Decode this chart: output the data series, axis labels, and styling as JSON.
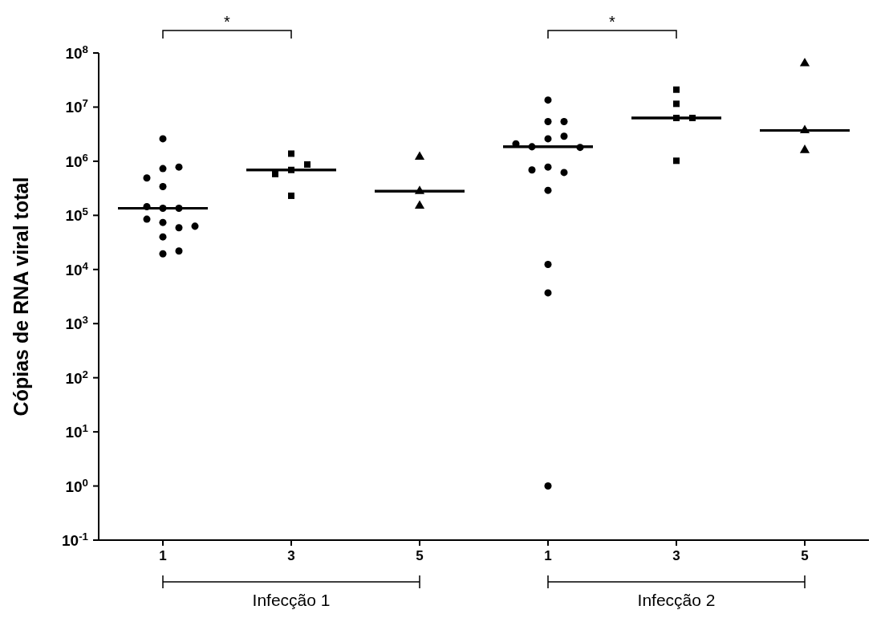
{
  "chart_data": [
    {
      "type": "scatter",
      "xlabel": "Infecção 1",
      "ylabel": "Cópias de RNA viral total",
      "log": "y",
      "categories": [
        "1",
        "3",
        "5"
      ],
      "ylim": [
        0.1,
        100000000
      ],
      "yticks": [
        {
          "value": 0.1,
          "label": "10$^{-1}$"
        },
        {
          "value": 1,
          "label": "10$^{0}$"
        },
        {
          "value": 10,
          "label": "10$^{1}$"
        },
        {
          "value": 100,
          "label": "10$^{2}$"
        },
        {
          "value": 1000,
          "label": "10$^{3}$"
        },
        {
          "value": 10000,
          "label": "10$^{4}$"
        },
        {
          "value": 100000,
          "label": "10$^{5}$"
        },
        {
          "value": 1000000,
          "label": "10$^{6}$"
        },
        {
          "value": 10000000,
          "label": "10$^{7}$"
        },
        {
          "value": 100000000,
          "label": "10$^{8}$"
        }
      ],
      "series": [
        {
          "type": "scatter",
          "marker": "circle",
          "color": "#000000",
          "x": [
            "1",
            "1",
            "1",
            "1",
            "1",
            "1",
            "1",
            "1",
            "1",
            "1",
            "1",
            "1",
            "1",
            "1",
            "1"
          ],
          "values": [
            2600000,
            730000,
            780000,
            490000,
            340000,
            135000,
            135000,
            145000,
            74000,
            85000,
            59000,
            63000,
            40000,
            19500,
            22000
          ]
        },
        {
          "type": "scatter",
          "marker": "square",
          "color": "#000000",
          "x": [
            "3",
            "3",
            "3",
            "3",
            "3"
          ],
          "values": [
            1380000,
            870000,
            690000,
            580000,
            230000
          ]
        },
        {
          "type": "scatter",
          "marker": "triangle",
          "color": "#000000",
          "x": [
            "5",
            "5",
            "5"
          ],
          "values": [
            1200000,
            280000,
            150000
          ]
        },
        {
          "type": "box",
          "color": "#000000",
          "boxes": [
            {
              "low": 135000,
              "q1": 135000,
              "median": 135000,
              "q3": 135000,
              "high": 135000
            },
            {
              "low": 690000,
              "q1": 690000,
              "median": 690000,
              "q3": 690000,
              "high": 690000
            },
            {
              "low": 280000,
              "q1": 280000,
              "median": 280000,
              "q3": 280000,
              "high": 280000
            }
          ]
        }
      ],
      "annotations": [
        "*"
      ]
    },
    {
      "type": "scatter",
      "xlabel": "Infecção 2",
      "log": "y",
      "tick_labels": "x",
      "categories": [
        "1",
        "3",
        "5"
      ],
      "ylim": [
        0.1,
        100000000
      ],
      "series": [
        {
          "type": "scatter",
          "marker": "circle",
          "color": "#000000",
          "x": [
            "1",
            "1",
            "1",
            "1",
            "1",
            "1",
            "1",
            "1",
            "1",
            "1",
            "1",
            "1",
            "1",
            "1",
            "1"
          ],
          "values": [
            13500000,
            5400000,
            5400000,
            2600000,
            2900000,
            1850000,
            1800000,
            2100000,
            780000,
            620000,
            690000,
            290000,
            12400,
            3700,
            1
          ]
        },
        {
          "type": "scatter",
          "marker": "square",
          "color": "#000000",
          "x": [
            "3",
            "3",
            "3",
            "3",
            "3"
          ],
          "values": [
            21000000,
            11500000,
            6300000,
            6300000,
            1020000
          ]
        },
        {
          "type": "scatter",
          "marker": "triangle",
          "color": "#000000",
          "x": [
            "5",
            "5",
            "5"
          ],
          "values": [
            64000000,
            3700000,
            1600000
          ]
        },
        {
          "type": "box",
          "color": "#000000",
          "boxes": [
            {
              "low": 1850000,
              "q1": 1850000,
              "median": 1850000,
              "q3": 1850000,
              "high": 1850000
            },
            {
              "low": 6300000,
              "q1": 6300000,
              "median": 6300000,
              "q3": 6300000,
              "high": 6300000
            },
            {
              "low": 3700000,
              "q1": 3700000,
              "median": 3700000,
              "q3": 3700000,
              "high": 3700000
            }
          ]
        }
      ],
      "annotations": [
        "*"
      ]
    }
  ]
}
